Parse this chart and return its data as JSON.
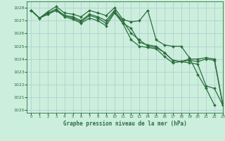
{
  "title": "Graphe pression niveau de la mer (hPa)",
  "background_color": "#cceedd",
  "grid_color": "#aacccc",
  "line_color": "#2d6e3e",
  "xlim": [
    -0.5,
    23
  ],
  "ylim": [
    1019.8,
    1028.5
  ],
  "yticks": [
    1020,
    1021,
    1022,
    1023,
    1024,
    1025,
    1026,
    1027,
    1028
  ],
  "xticks": [
    0,
    1,
    2,
    3,
    4,
    5,
    6,
    7,
    8,
    9,
    10,
    11,
    12,
    13,
    14,
    15,
    16,
    17,
    18,
    19,
    20,
    21,
    22,
    23
  ],
  "series": [
    {
      "x": [
        0,
        1,
        2,
        3,
        4,
        5,
        6,
        7,
        8,
        9,
        10,
        11,
        12,
        13,
        14,
        15,
        16,
        17,
        18,
        19,
        20,
        21,
        22
      ],
      "y": [
        1027.8,
        1027.2,
        1027.7,
        1028.1,
        1027.6,
        1027.5,
        1027.3,
        1027.8,
        1027.6,
        1027.4,
        1028.0,
        1027.1,
        1026.9,
        1027.0,
        1027.8,
        1025.5,
        1025.1,
        1025.0,
        1025.0,
        1024.1,
        1022.8,
        1021.7,
        1020.4
      ]
    },
    {
      "x": [
        0,
        1,
        2,
        3,
        4,
        5,
        6,
        7,
        8,
        9,
        10,
        11,
        12,
        13,
        14,
        15,
        16,
        17,
        18,
        19,
        20,
        21,
        22,
        23
      ],
      "y": [
        1027.8,
        1027.2,
        1027.6,
        1027.9,
        1027.4,
        1027.3,
        1027.0,
        1027.5,
        1027.3,
        1027.0,
        1027.8,
        1026.8,
        1026.4,
        1025.3,
        1025.1,
        1025.0,
        1024.5,
        1023.9,
        1023.8,
        1024.0,
        1024.0,
        1024.1,
        1024.0,
        1020.5
      ]
    },
    {
      "x": [
        0,
        1,
        2,
        3,
        4,
        5,
        6,
        7,
        8,
        9,
        10,
        11,
        12,
        13,
        14,
        15,
        16,
        17,
        18,
        19,
        20,
        21,
        22,
        23
      ],
      "y": [
        1027.8,
        1027.2,
        1027.5,
        1027.8,
        1027.4,
        1027.2,
        1026.9,
        1027.4,
        1027.2,
        1026.8,
        1027.7,
        1027.0,
        1026.0,
        1025.5,
        1025.0,
        1024.9,
        1024.5,
        1023.9,
        1023.8,
        1023.9,
        1023.8,
        1024.0,
        1023.9,
        1020.4
      ]
    },
    {
      "x": [
        0,
        1,
        2,
        3,
        4,
        5,
        6,
        7,
        8,
        9,
        10,
        11,
        12,
        13,
        14,
        15,
        16,
        17,
        18,
        19,
        20,
        21,
        22,
        23
      ],
      "y": [
        1027.8,
        1027.2,
        1027.5,
        1027.8,
        1027.3,
        1027.1,
        1026.8,
        1027.2,
        1027.0,
        1026.6,
        1027.6,
        1026.8,
        1025.5,
        1025.0,
        1024.9,
        1024.8,
        1024.2,
        1023.7,
        1023.8,
        1023.7,
        1023.6,
        1021.9,
        1021.7,
        1020.4
      ]
    }
  ]
}
